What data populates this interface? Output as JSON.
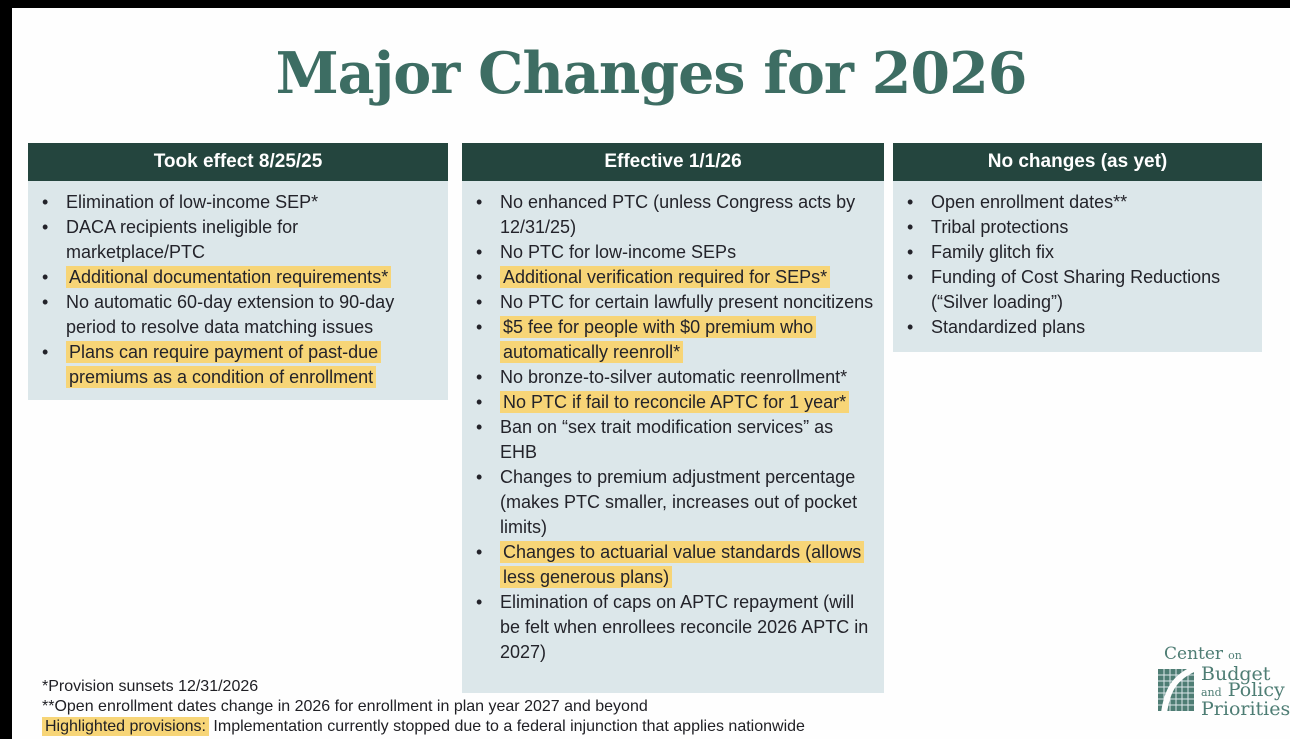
{
  "title": "Major Changes for 2026",
  "colors": {
    "header_teal": "#24453e",
    "title_teal": "#3d6d63",
    "panel_bg": "#dce7ea",
    "highlight_yellow": "#f7d577",
    "border_black": "#000000"
  },
  "columns": [
    {
      "header": "Took effect 8/25/25",
      "items": [
        {
          "text": "Elimination of low-income SEP*",
          "highlight": false
        },
        {
          "text": "DACA recipients ineligible for marketplace/PTC",
          "highlight": false
        },
        {
          "text": "Additional documentation requirements*",
          "highlight": true
        },
        {
          "text": "No automatic 60-day extension to 90-day period to resolve data matching issues",
          "highlight": false
        },
        {
          "text": "Plans can require payment of past-due premiums as a condition of enrollment",
          "highlight": true
        }
      ]
    },
    {
      "header": "Effective 1/1/26",
      "items": [
        {
          "text": "No enhanced PTC (unless Congress acts by 12/31/25)",
          "highlight": false
        },
        {
          "text": "No PTC for low-income SEPs",
          "highlight": false
        },
        {
          "text": "Additional verification required for SEPs*",
          "highlight": true
        },
        {
          "text": "No PTC for certain lawfully present noncitizens",
          "highlight": false
        },
        {
          "text": "$5 fee for people with $0 premium who automatically reenroll*",
          "highlight": true
        },
        {
          "text": "No bronze-to-silver automatic reenrollment*",
          "highlight": false
        },
        {
          "text": "No PTC if fail to reconcile APTC for 1 year*",
          "highlight": true
        },
        {
          "text": "Ban on “sex trait modification services” as EHB",
          "highlight": false
        },
        {
          "text": "Changes to premium adjustment percentage (makes PTC smaller, increases out of pocket limits)",
          "highlight": false
        },
        {
          "text": "Changes to actuarial value standards (allows less generous plans)",
          "highlight": true
        },
        {
          "text": "Elimination of caps on APTC repayment (will be felt when enrollees reconcile 2026 APTC in 2027)",
          "highlight": false
        }
      ]
    },
    {
      "header": "No changes (as yet)",
      "items": [
        {
          "text": "Open enrollment dates**",
          "highlight": false
        },
        {
          "text": "Tribal protections",
          "highlight": false
        },
        {
          "text": "Family glitch fix",
          "highlight": false
        },
        {
          "text": "Funding of Cost Sharing Reductions (“Silver loading”)",
          "highlight": false
        },
        {
          "text": "Standardized plans",
          "highlight": false
        }
      ]
    }
  ],
  "footnotes": [
    {
      "text": "*Provision sunsets 12/31/2026"
    },
    {
      "text": "**Open enrollment dates change in 2026 for enrollment in plan year 2027 and beyond"
    },
    {
      "highlight": "Highlighted provisions:",
      "text": " Implementation currently stopped due to a federal injunction that applies nationwide"
    }
  ],
  "logo": {
    "center": "Center",
    "on": "on",
    "budget": "Budget",
    "and": "and",
    "policy": "Policy",
    "priorities": "Priorities"
  }
}
